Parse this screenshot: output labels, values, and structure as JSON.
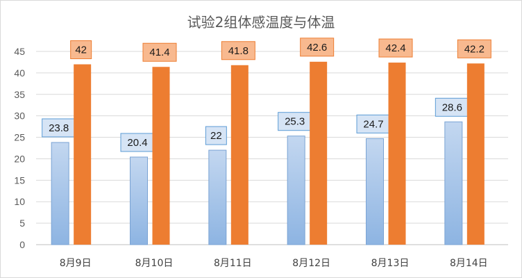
{
  "chart_data": {
    "type": "bar",
    "title": "试验2组体感温度与体温",
    "categories": [
      "8月9日",
      "8月10日",
      "8月11日",
      "8月12日",
      "8月13日",
      "8月14日"
    ],
    "series": [
      {
        "values": [
          23.8,
          20.4,
          22,
          25.3,
          24.7,
          28.6
        ]
      },
      {
        "values": [
          42,
          41.4,
          41.8,
          42.6,
          42.4,
          42.2
        ]
      }
    ],
    "ylim": [
      0,
      45
    ],
    "yticks": [
      0,
      5,
      10,
      15,
      20,
      25,
      30,
      35,
      40,
      45
    ],
    "grid": true,
    "data_labels": true
  },
  "colors": {
    "series1_fill_top": "#c3d7f0",
    "series1_fill_bottom": "#8db4e2",
    "series1_stroke": "#7aa3d4",
    "series1_label_bg": "#d6e4f5",
    "series1_label_border": "#5b9bd5",
    "series2_fill": "#ed7d31",
    "series2_label_bg": "#f8b98f",
    "series2_label_border": "#ed7d31",
    "grid": "#d9d9d9",
    "axis": "#bfbfbf"
  }
}
